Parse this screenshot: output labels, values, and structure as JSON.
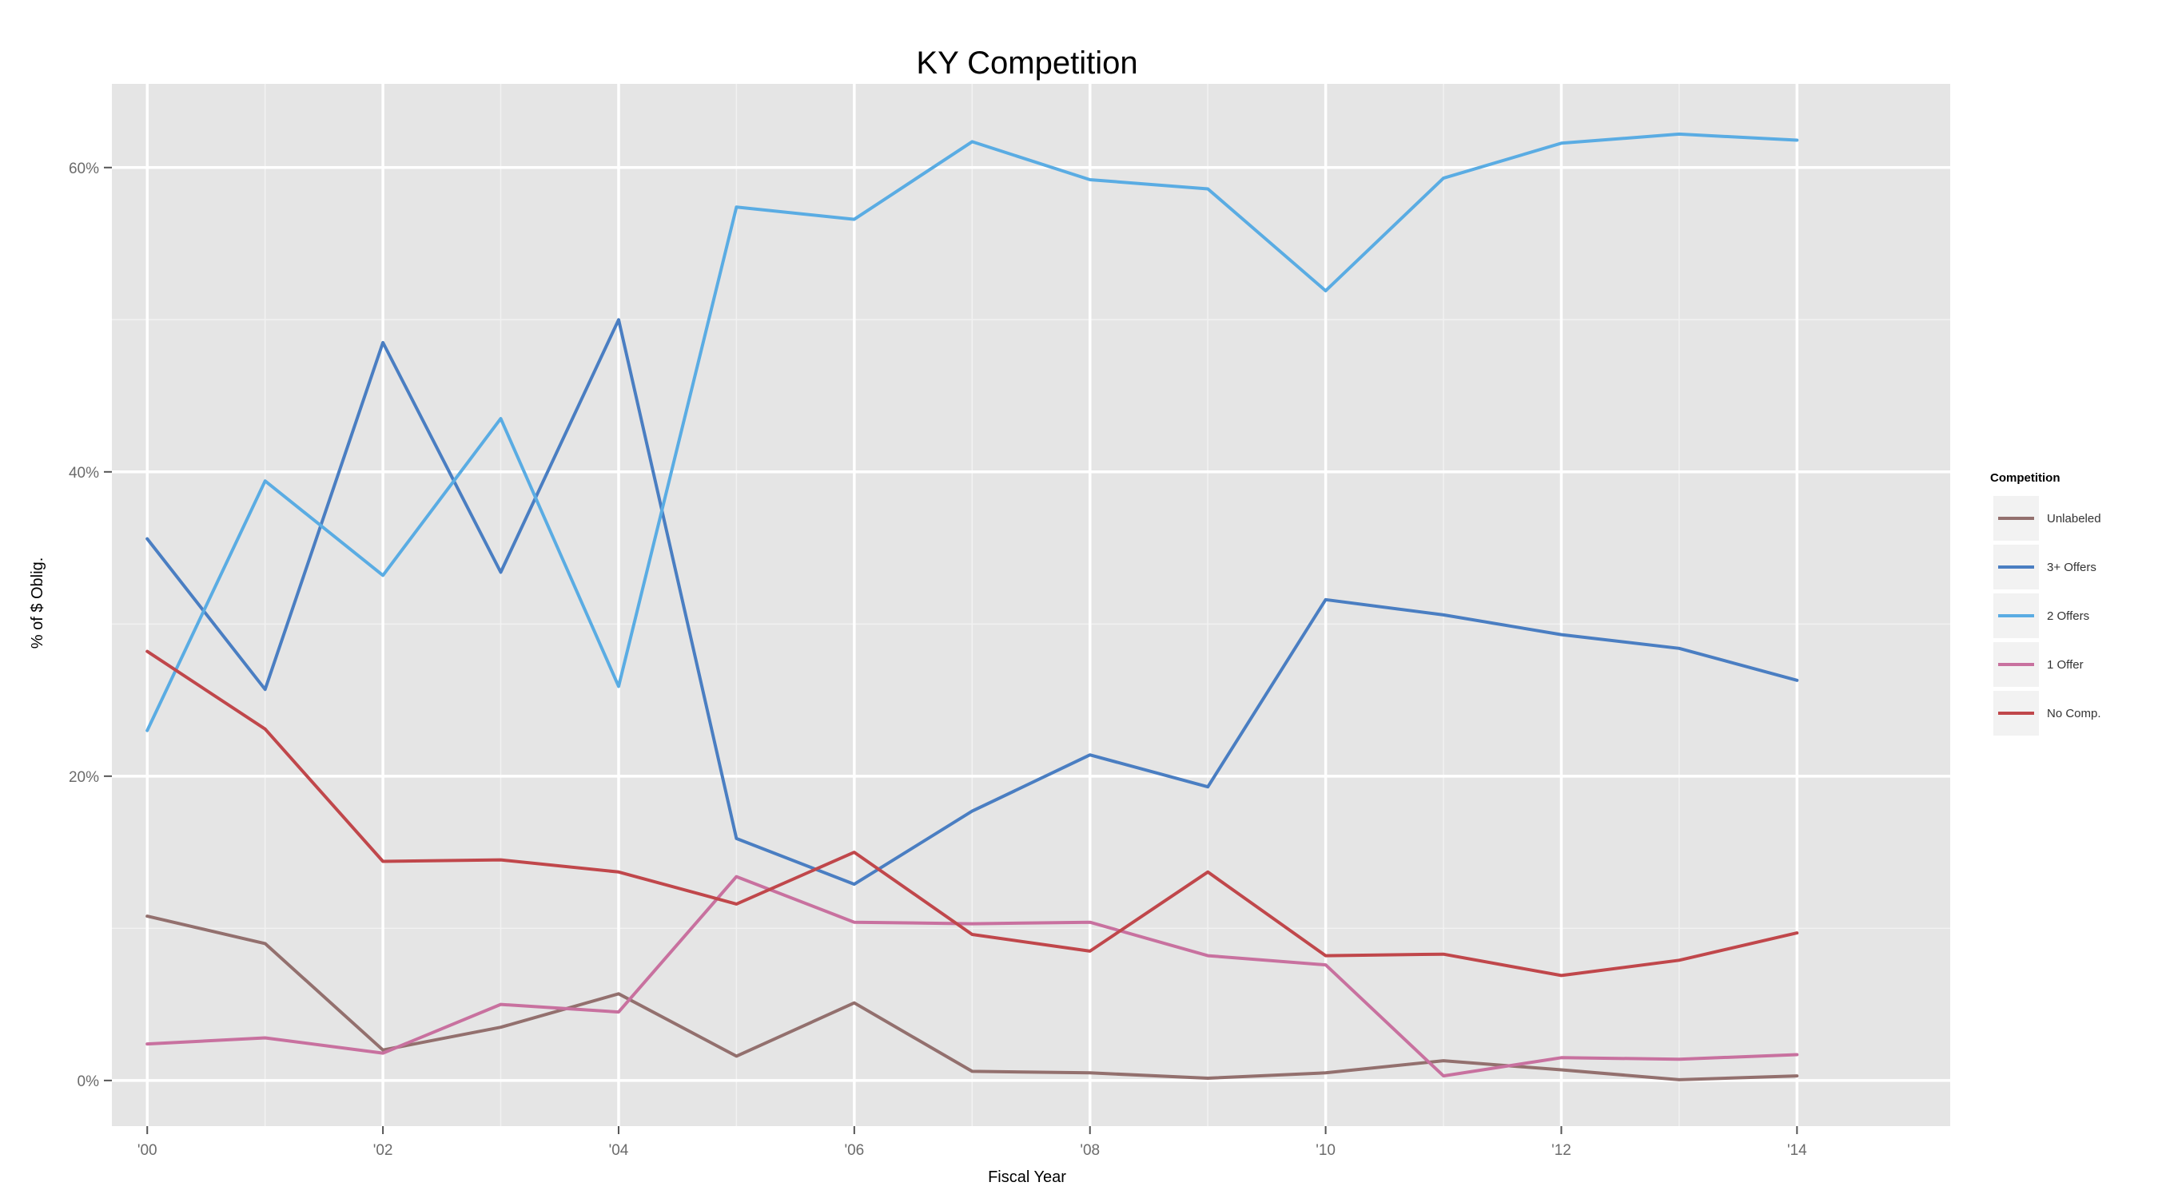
{
  "chart_data": {
    "type": "line",
    "title": "KY Competition",
    "xlabel": "Fiscal Year",
    "ylabel": "% of $ Oblig.",
    "x": [
      2000,
      2001,
      2002,
      2003,
      2004,
      2005,
      2006,
      2007,
      2008,
      2009,
      2010,
      2011,
      2012,
      2013,
      2014
    ],
    "x_tick_values": [
      2000,
      2002,
      2004,
      2006,
      2008,
      2010,
      2012,
      2014
    ],
    "x_tick_labels": [
      "'00",
      "'02",
      "'04",
      "'06",
      "'08",
      "'10",
      "'12",
      "'14"
    ],
    "xlim": [
      1999.7,
      2015.3
    ],
    "y_tick_values": [
      0,
      20,
      40,
      60
    ],
    "y_tick_labels": [
      "0%",
      "20%",
      "40%",
      "60%"
    ],
    "ylim": [
      -3,
      65.5
    ],
    "grid": true,
    "background": "#e5e5e5",
    "legend": {
      "title": "Competition",
      "placement": "right"
    },
    "series": [
      {
        "name": "Unlabeled",
        "color": "#93706e",
        "values": [
          10.8,
          9.0,
          2.0,
          3.5,
          5.7,
          1.6,
          5.1,
          0.6,
          0.5,
          0.15,
          0.5,
          1.3,
          0.7,
          0.05,
          0.3
        ]
      },
      {
        "name": "3+ Offers",
        "color": "#4a7ec2",
        "values": [
          35.6,
          25.7,
          48.5,
          33.4,
          50.0,
          15.9,
          12.9,
          17.7,
          21.4,
          19.3,
          31.6,
          30.6,
          29.3,
          28.4,
          26.3
        ]
      },
      {
        "name": "2 Offers",
        "color": "#5aace3",
        "values": [
          23.0,
          39.4,
          33.2,
          43.5,
          25.9,
          57.4,
          56.6,
          61.7,
          59.2,
          58.6,
          51.9,
          59.3,
          61.6,
          62.2,
          61.8
        ]
      },
      {
        "name": "1 Offer",
        "color": "#c8719f",
        "values": [
          2.4,
          2.8,
          1.8,
          5.0,
          4.5,
          13.4,
          10.4,
          10.3,
          10.4,
          8.2,
          7.6,
          0.3,
          1.5,
          1.4,
          1.7
        ]
      },
      {
        "name": "No Comp.",
        "color": "#c0474b",
        "values": [
          28.2,
          23.1,
          14.4,
          14.5,
          13.7,
          11.6,
          15.0,
          9.6,
          8.5,
          13.7,
          8.2,
          8.3,
          6.9,
          7.9,
          9.7
        ]
      }
    ]
  }
}
